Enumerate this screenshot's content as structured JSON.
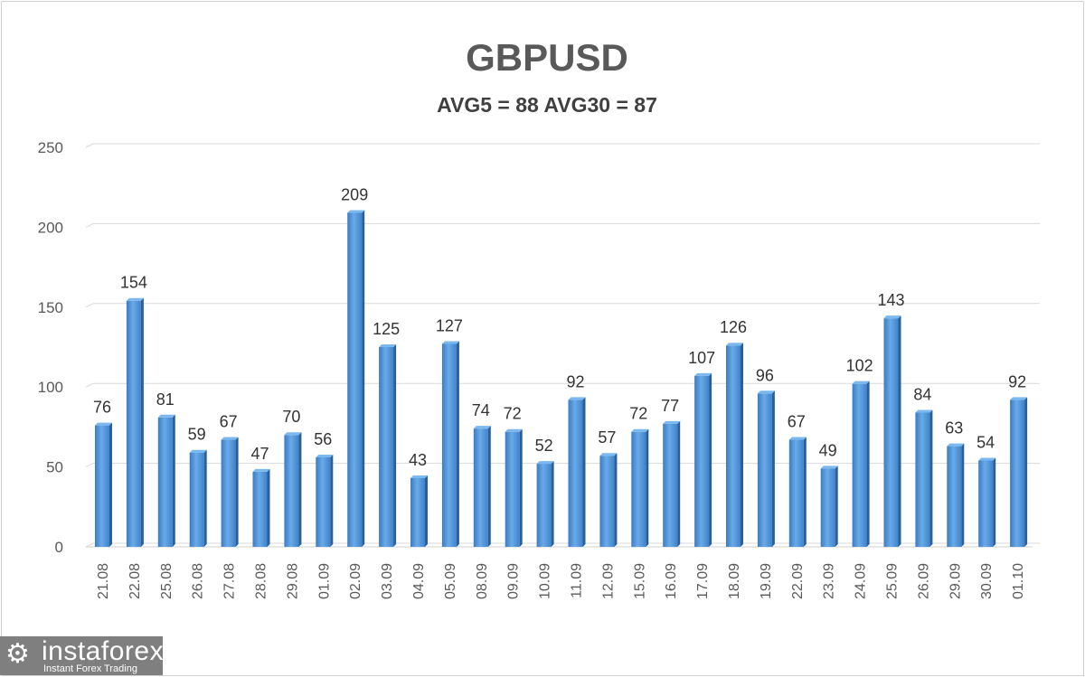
{
  "chart_data": {
    "type": "bar",
    "title": "GBPUSD",
    "subtitle": "AVG5 = 88 AVG30 = 87",
    "categories": [
      "21.08",
      "22.08",
      "25.08",
      "26.08",
      "27.08",
      "28.08",
      "29.08",
      "01.09",
      "02.09",
      "03.09",
      "04.09",
      "05.09",
      "08.09",
      "09.09",
      "10.09",
      "11.09",
      "12.09",
      "15.09",
      "16.09",
      "17.09",
      "18.09",
      "19.09",
      "22.09",
      "23.09",
      "24.09",
      "25.09",
      "26.09",
      "29.09",
      "30.09",
      "01.10"
    ],
    "values": [
      76,
      154,
      81,
      59,
      67,
      47,
      70,
      56,
      209,
      125,
      43,
      127,
      74,
      72,
      52,
      92,
      57,
      72,
      77,
      107,
      126,
      96,
      67,
      49,
      102,
      143,
      84,
      63,
      54,
      92
    ],
    "ylim": [
      0,
      250
    ],
    "yticks": [
      0,
      50,
      100,
      150,
      200,
      250
    ],
    "grid": true,
    "bar_color": "#4a90d4",
    "data_labels": true
  },
  "watermark": {
    "name": "instaforex",
    "tagline": "Instant Forex Trading"
  }
}
